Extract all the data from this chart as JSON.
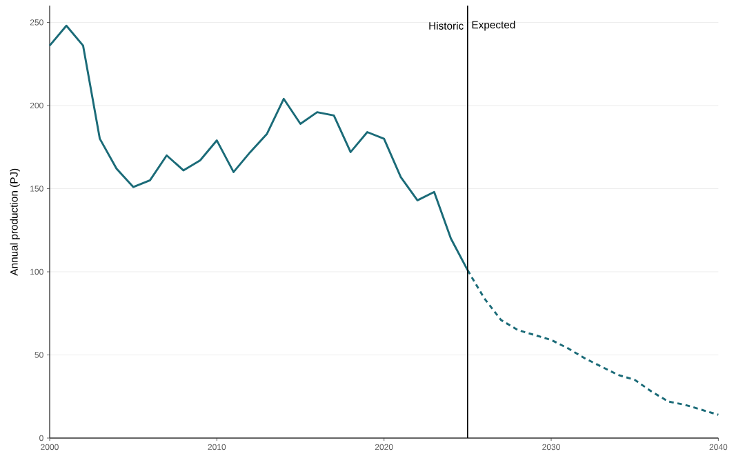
{
  "chart_data": {
    "type": "line",
    "ylabel": "Annual production (PJ)",
    "xlim": [
      2000,
      2040
    ],
    "ylim": [
      0,
      260
    ],
    "xticks": [
      2000,
      2010,
      2020,
      2030,
      2040
    ],
    "yticks": [
      0,
      50,
      100,
      150,
      200,
      250
    ],
    "grid": "y",
    "series": [
      {
        "color": "#1b6b78",
        "line_style": "solid",
        "x": [
          2000,
          2001,
          2002,
          2003,
          2004,
          2005,
          2006,
          2007,
          2008,
          2009,
          2010,
          2011,
          2012,
          2013,
          2014,
          2015,
          2016,
          2017,
          2018,
          2019,
          2020,
          2021,
          2022,
          2023,
          2024,
          2025
        ],
        "values": [
          236,
          248,
          236,
          180,
          162,
          151,
          155,
          170,
          161,
          167,
          179,
          160,
          172,
          183,
          204,
          189,
          196,
          194,
          172,
          184,
          180,
          157,
          143,
          148,
          120,
          101
        ]
      },
      {
        "color": "#1b6b78",
        "line_style": "dashed",
        "x": [
          2025,
          2026,
          2027,
          2028,
          2029,
          2030,
          2031,
          2032,
          2033,
          2034,
          2035,
          2036,
          2037,
          2038,
          2039,
          2040
        ],
        "values": [
          101,
          84,
          71,
          65,
          62,
          59,
          54,
          48,
          43,
          38,
          35,
          28,
          22,
          20,
          17,
          14
        ]
      }
    ],
    "ref_lines": [
      {
        "axis": "x",
        "value": 2025,
        "color": "#000000"
      }
    ],
    "annotations": [
      {
        "text": "Historic",
        "x": 2025,
        "y": 248
      },
      {
        "text": "Expected",
        "x": 2025,
        "y": 248
      }
    ]
  }
}
